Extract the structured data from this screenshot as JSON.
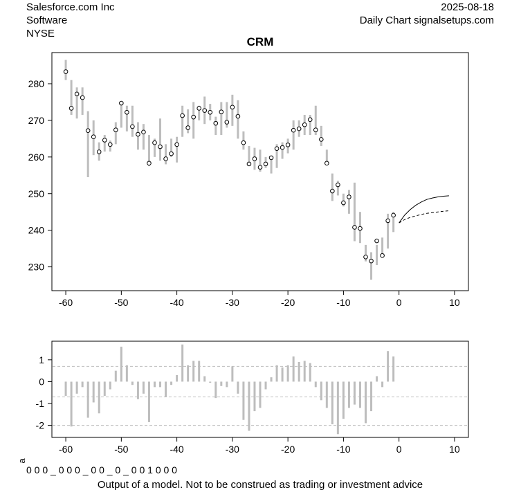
{
  "header": {
    "company": "Salesforce.com Inc",
    "sector": "Software",
    "exchange": "NYSE",
    "date": "2025-08-18",
    "source": "Daily Chart signalsetups.com"
  },
  "footer": {
    "disclaimer": "Output of a model. Not to be construed as trading or investment advice",
    "signal_label": "a",
    "signal_string": "0 0 0 _ 0 0 0 _ 0 0 _ 0 _ 0 0 1 0 0 0"
  },
  "colors": {
    "bars": "#bdbdbd",
    "grid": "#bdbdbd",
    "frame": "#000000"
  },
  "chart_data": [
    {
      "type": "range-bar",
      "title": "CRM",
      "xlim": [
        -62.5,
        12.5
      ],
      "ylim": [
        223.5,
        288.5
      ],
      "xticks": [
        -60,
        -50,
        -40,
        -30,
        -20,
        -10,
        0,
        10
      ],
      "yticks": [
        230,
        240,
        250,
        260,
        270,
        280
      ],
      "x": [
        -60,
        -59,
        -58,
        -57,
        -56,
        -55,
        -54,
        -53,
        -52,
        -51,
        -50,
        -49,
        -48,
        -47,
        -46,
        -45,
        -44,
        -43,
        -42,
        -41,
        -40,
        -39,
        -38,
        -37,
        -36,
        -35,
        -34,
        -33,
        -32,
        -31,
        -30,
        -29,
        -28,
        -27,
        -26,
        -25,
        -24,
        -23,
        -22,
        -21,
        -20,
        -19,
        -18,
        -17,
        -16,
        -15,
        -14,
        -13,
        -12,
        -11,
        -10,
        -9,
        -8,
        -7,
        -6,
        -5,
        -4,
        -3,
        -2,
        -1
      ],
      "high": [
        286.5,
        281,
        279,
        279,
        272.5,
        270,
        264,
        266,
        264.5,
        269.5,
        275,
        274,
        274,
        269.5,
        269,
        266,
        265,
        270.5,
        263.5,
        265,
        265.5,
        274,
        273,
        275,
        274,
        276.5,
        274.5,
        271,
        275,
        275,
        277,
        275.5,
        267,
        263,
        262.5,
        262,
        260,
        260,
        263.5,
        264,
        265,
        270,
        270,
        271.5,
        271.5,
        274,
        268.5,
        262,
        255.5,
        253.5,
        250,
        251,
        253,
        245,
        236,
        234,
        236,
        238,
        244.5,
        245
      ],
      "low": [
        281,
        271.5,
        270.5,
        271.5,
        254.5,
        260.5,
        259,
        261.5,
        261.5,
        263.5,
        268,
        267,
        265.5,
        262,
        262,
        257.5,
        260,
        259,
        258,
        260,
        258.5,
        265.5,
        266.5,
        265,
        270,
        269,
        270,
        266,
        266,
        268,
        268.5,
        265,
        262,
        257.5,
        256.5,
        256,
        257,
        255.5,
        257,
        259.5,
        261,
        262,
        265.5,
        266,
        266,
        266,
        263,
        258,
        248,
        249.5,
        246.5,
        244.5,
        237,
        236.5,
        231.5,
        226.5,
        230.5,
        232.5,
        235,
        239.5
      ],
      "close": [
        283.3,
        273.3,
        277.2,
        276.2,
        267.2,
        265.5,
        261.4,
        264.6,
        263.4,
        267.4,
        274.7,
        272.2,
        268.3,
        266.2,
        266.8,
        258.3,
        263.9,
        262.8,
        259.5,
        260.9,
        263.4,
        271.3,
        268,
        270.9,
        273.3,
        272.7,
        272.2,
        269.2,
        272.3,
        269.5,
        273.6,
        271.1,
        263.9,
        258.1,
        259.5,
        257.2,
        258.1,
        259.8,
        262.3,
        262.6,
        263.3,
        267.3,
        267.7,
        268.8,
        270.2,
        267.4,
        264.8,
        258.3,
        250.7,
        252.4,
        247.5,
        249.1,
        240.8,
        240.5,
        232.7,
        231.6,
        237.1,
        233.1,
        242.6,
        244.1
      ],
      "forecast": {
        "solid": [
          [
            0,
            242
          ],
          [
            1,
            244.1
          ],
          [
            2,
            245.6
          ],
          [
            3,
            246.8
          ],
          [
            4,
            247.7
          ],
          [
            5,
            248.4
          ],
          [
            6,
            248.8
          ],
          [
            7,
            249.1
          ],
          [
            8,
            249.3
          ],
          [
            9,
            249.4
          ]
        ],
        "dashed": [
          [
            0,
            242
          ],
          [
            1,
            242.9
          ],
          [
            2,
            243.5
          ],
          [
            3,
            243.9
          ],
          [
            4,
            244.3
          ],
          [
            5,
            244.6
          ],
          [
            6,
            244.8
          ],
          [
            7,
            245
          ],
          [
            8,
            245.2
          ],
          [
            9,
            245.3
          ]
        ]
      }
    },
    {
      "type": "bar",
      "xlim": [
        -62.5,
        12.5
      ],
      "ylim": [
        -2.55,
        1.85
      ],
      "xticks": [
        -60,
        -50,
        -40,
        -30,
        -20,
        -10,
        0,
        10
      ],
      "yticks": [
        -2,
        -1,
        0,
        1
      ],
      "hlines": [
        -2,
        -0.7,
        0.7
      ],
      "x": [
        -60,
        -59,
        -58,
        -57,
        -56,
        -55,
        -54,
        -53,
        -52,
        -51,
        -50,
        -49,
        -48,
        -47,
        -46,
        -45,
        -44,
        -43,
        -42,
        -41,
        -40,
        -39,
        -38,
        -37,
        -36,
        -35,
        -34,
        -33,
        -32,
        -31,
        -30,
        -29,
        -28,
        -27,
        -26,
        -25,
        -24,
        -23,
        -22,
        -21,
        -20,
        -19,
        -18,
        -17,
        -16,
        -15,
        -14,
        -13,
        -12,
        -11,
        -10,
        -9,
        -8,
        -7,
        -6,
        -5,
        -4,
        -3,
        -2,
        -1
      ],
      "values": [
        -0.65,
        -2.05,
        -0.55,
        -0.25,
        -1.65,
        -0.95,
        -1.45,
        -0.65,
        -0.35,
        0.5,
        1.6,
        0.75,
        -0.15,
        -0.8,
        -0.55,
        -1.85,
        -0.25,
        -0.25,
        -0.7,
        -0.15,
        0.3,
        1.7,
        0.75,
        0.95,
        0.95,
        0.25,
        -0.05,
        -0.75,
        -0.2,
        -0.25,
        0.7,
        -0.55,
        -1.75,
        -2.25,
        -1.35,
        -1.2,
        -0.35,
        0.2,
        0.75,
        0.65,
        0.75,
        1.15,
        0.9,
        0.95,
        0.85,
        -0.25,
        -0.85,
        -1.2,
        -1.95,
        -2.4,
        -1.7,
        -1.2,
        -1.05,
        -1.2,
        -1.9,
        -1.35,
        0.25,
        -0.25,
        1.4,
        1.15
      ]
    }
  ]
}
